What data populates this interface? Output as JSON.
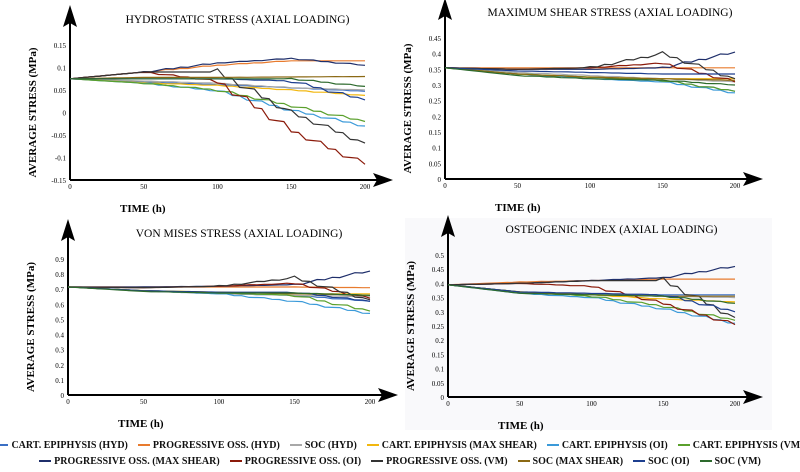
{
  "legend": [
    {
      "name": "CART. EPIPHYSIS (HYD)",
      "color": "#3a6fc4"
    },
    {
      "name": "PROGRESSIVE OSS. (HYD)",
      "color": "#e87b2e"
    },
    {
      "name": "SOC (HYD)",
      "color": "#a8a8a8"
    },
    {
      "name": "CART. EPIPHYSIS (MAX SHEAR)",
      "color": "#f2b70f"
    },
    {
      "name": "CART. EPIPHYSIS (OI)",
      "color": "#3b9ad9"
    },
    {
      "name": "CART. EPIPHYSIS (VM)",
      "color": "#5aa02c"
    },
    {
      "name": "PROGRESSIVE OSS. (MAX SHEAR)",
      "color": "#1f2f6b"
    },
    {
      "name": "PROGRESSIVE OSS. (OI)",
      "color": "#8b1a0a"
    },
    {
      "name": "PROGRESSIVE OSS. (VM)",
      "color": "#333333"
    },
    {
      "name": "SOC (MAX SHEAR)",
      "color": "#8b6914"
    },
    {
      "name": "SOC (OI)",
      "color": "#1d3f8f"
    },
    {
      "name": "SOC (VM)",
      "color": "#2d6a2d"
    }
  ],
  "chart_data": [
    {
      "type": "line",
      "title": "HYDROSTATIC STRESS (AXIAL LOADING)",
      "xlabel": "TIME (h)",
      "ylabel": "AVERAGE STRESS (MPa)",
      "xlim": [
        0,
        200
      ],
      "ylim": [
        -0.15,
        0.17
      ],
      "xticks": [
        "0",
        "50",
        "100",
        "150",
        "200"
      ],
      "yticks": [
        "-0.15",
        "-0.1",
        "-0.05",
        "0",
        "0.05",
        "0.1",
        "0.15"
      ],
      "x": [
        0,
        50,
        100,
        150,
        200
      ],
      "series": [
        {
          "name": "CART. EPIPHYSIS (HYD)",
          "values": [
            0.075,
            0.068,
            0.062,
            0.055,
            0.047
          ]
        },
        {
          "name": "PROGRESSIVE OSS. (HYD)",
          "values": [
            0.075,
            0.09,
            0.105,
            0.115,
            0.115
          ]
        },
        {
          "name": "SOC (HYD)",
          "values": [
            0.075,
            0.07,
            0.065,
            0.055,
            0.05
          ]
        },
        {
          "name": "CART. EPIPHYSIS (MAX SHEAR)",
          "values": [
            0.075,
            0.066,
            0.06,
            0.05,
            0.038
          ]
        },
        {
          "name": "CART. EPIPHYSIS (OI)",
          "values": [
            0.075,
            0.065,
            0.048,
            0.005,
            -0.03
          ]
        },
        {
          "name": "CART. EPIPHYSIS (VM)",
          "values": [
            0.075,
            0.065,
            0.05,
            0.015,
            -0.02
          ]
        },
        {
          "name": "PROGRESSIVE OSS. (MAX SHEAR)",
          "values": [
            0.075,
            0.09,
            0.11,
            0.12,
            0.105
          ]
        },
        {
          "name": "PROGRESSIVE OSS. (OI)",
          "values": [
            0.075,
            0.09,
            0.07,
            -0.04,
            -0.115
          ]
        },
        {
          "name": "PROGRESSIVE OSS. (VM)",
          "values": [
            0.075,
            0.09,
            0.09,
            0.0,
            -0.068
          ]
        },
        {
          "name": "SOC (MAX SHEAR)",
          "values": [
            0.075,
            0.078,
            0.078,
            0.079,
            0.08
          ]
        },
        {
          "name": "SOC (OI)",
          "values": [
            0.075,
            0.075,
            0.075,
            0.07,
            0.028
          ]
        },
        {
          "name": "SOC (VM)",
          "values": [
            0.075,
            0.075,
            0.075,
            0.075,
            0.058
          ]
        }
      ]
    },
    {
      "type": "line",
      "title": "MAXIMUM SHEAR STRESS (AXIAL LOADING)",
      "xlabel": "TIME (h)",
      "ylabel": "AVERAGE STRESS (MPa)",
      "xlim": [
        0,
        200
      ],
      "ylim": [
        0,
        0.47
      ],
      "xticks": [
        "0",
        "50",
        "100",
        "150",
        "200"
      ],
      "yticks": [
        "0",
        "0.05",
        "0.1",
        "0.15",
        "0.2",
        "0.25",
        "0.3",
        "0.35",
        "0.4",
        "0.45"
      ],
      "x": [
        0,
        50,
        100,
        150,
        200
      ],
      "series": [
        {
          "name": "CART. EPIPHYSIS (HYD)",
          "values": [
            0.355,
            0.335,
            0.325,
            0.315,
            0.28
          ]
        },
        {
          "name": "PROGRESSIVE OSS. (HYD)",
          "values": [
            0.355,
            0.355,
            0.355,
            0.355,
            0.355
          ]
        },
        {
          "name": "SOC (HYD)",
          "values": [
            0.355,
            0.34,
            0.33,
            0.32,
            0.31
          ]
        },
        {
          "name": "CART. EPIPHYSIS (MAX SHEAR)",
          "values": [
            0.355,
            0.335,
            0.325,
            0.32,
            0.32
          ]
        },
        {
          "name": "CART. EPIPHYSIS (OI)",
          "values": [
            0.355,
            0.335,
            0.32,
            0.31,
            0.275
          ]
        },
        {
          "name": "CART. EPIPHYSIS (VM)",
          "values": [
            0.355,
            0.335,
            0.325,
            0.315,
            0.28
          ]
        },
        {
          "name": "PROGRESSIVE OSS. (MAX SHEAR)",
          "values": [
            0.355,
            0.35,
            0.35,
            0.355,
            0.405
          ]
        },
        {
          "name": "PROGRESSIVE OSS. (OI)",
          "values": [
            0.355,
            0.35,
            0.355,
            0.37,
            0.31
          ]
        },
        {
          "name": "PROGRESSIVE OSS. (VM)",
          "values": [
            0.355,
            0.35,
            0.355,
            0.4,
            0.32
          ]
        },
        {
          "name": "SOC (MAX SHEAR)",
          "values": [
            0.355,
            0.335,
            0.325,
            0.32,
            0.315
          ]
        },
        {
          "name": "SOC (OI)",
          "values": [
            0.355,
            0.345,
            0.34,
            0.335,
            0.335
          ]
        },
        {
          "name": "SOC (VM)",
          "values": [
            0.355,
            0.33,
            0.32,
            0.315,
            0.3
          ]
        }
      ]
    },
    {
      "type": "line",
      "title": "VON MISES STRESS (AXIAL LOADING)",
      "xlabel": "TIME (h)",
      "ylabel": "AVERAGE STRESS (MPa)",
      "xlim": [
        0,
        200
      ],
      "ylim": [
        0,
        0.95
      ],
      "xticks": [
        "0",
        "50",
        "100",
        "150",
        "200"
      ],
      "yticks": [
        "0",
        "0.1",
        "0.2",
        "0.3",
        "0.4",
        "0.5",
        "0.6",
        "0.7",
        "0.8",
        "0.9"
      ],
      "x": [
        0,
        50,
        100,
        150,
        200
      ],
      "series": [
        {
          "name": "CART. EPIPHYSIS (HYD)",
          "values": [
            0.715,
            0.69,
            0.67,
            0.66,
            0.62
          ]
        },
        {
          "name": "PROGRESSIVE OSS. (HYD)",
          "values": [
            0.715,
            0.715,
            0.715,
            0.715,
            0.71
          ]
        },
        {
          "name": "SOC (HYD)",
          "values": [
            0.715,
            0.69,
            0.67,
            0.66,
            0.65
          ]
        },
        {
          "name": "CART. EPIPHYSIS (MAX SHEAR)",
          "values": [
            0.715,
            0.69,
            0.68,
            0.67,
            0.67
          ]
        },
        {
          "name": "CART. EPIPHYSIS (OI)",
          "values": [
            0.715,
            0.69,
            0.67,
            0.62,
            0.54
          ]
        },
        {
          "name": "CART. EPIPHYSIS (VM)",
          "values": [
            0.715,
            0.69,
            0.675,
            0.66,
            0.555
          ]
        },
        {
          "name": "PROGRESSIVE OSS. (MAX SHEAR)",
          "values": [
            0.715,
            0.715,
            0.72,
            0.73,
            0.82
          ]
        },
        {
          "name": "PROGRESSIVE OSS. (OI)",
          "values": [
            0.715,
            0.71,
            0.72,
            0.74,
            0.64
          ]
        },
        {
          "name": "PROGRESSIVE OSS. (VM)",
          "values": [
            0.715,
            0.71,
            0.72,
            0.775,
            0.63
          ]
        },
        {
          "name": "SOC (MAX SHEAR)",
          "values": [
            0.715,
            0.69,
            0.68,
            0.67,
            0.66
          ]
        },
        {
          "name": "SOC (OI)",
          "values": [
            0.715,
            0.69,
            0.68,
            0.68,
            0.62
          ]
        },
        {
          "name": "SOC (VM)",
          "values": [
            0.715,
            0.685,
            0.675,
            0.675,
            0.66
          ]
        }
      ]
    },
    {
      "type": "line",
      "title": "OSTEOGENIC INDEX (AXIAL LOADING)",
      "xlabel": "TIME (h)",
      "ylabel": "AVERAGE STRESS (MPa)",
      "xlim": [
        0,
        200
      ],
      "ylim": [
        0,
        0.52
      ],
      "xticks": [
        "0",
        "50",
        "100",
        "150",
        "200"
      ],
      "yticks": [
        "0",
        "0.05",
        "0.1",
        "0.15",
        "0.2",
        "0.25",
        "0.3",
        "0.35",
        "0.4",
        "0.45",
        "0.5"
      ],
      "x": [
        0,
        50,
        100,
        150,
        200
      ],
      "series": [
        {
          "name": "CART. EPIPHYSIS (HYD)",
          "values": [
            0.395,
            0.37,
            0.36,
            0.36,
            0.36
          ]
        },
        {
          "name": "PROGRESSIVE OSS. (HYD)",
          "values": [
            0.395,
            0.405,
            0.41,
            0.415,
            0.415
          ]
        },
        {
          "name": "SOC (HYD)",
          "values": [
            0.395,
            0.37,
            0.36,
            0.355,
            0.35
          ]
        },
        {
          "name": "CART. EPIPHYSIS (MAX SHEAR)",
          "values": [
            0.395,
            0.37,
            0.36,
            0.345,
            0.335
          ]
        },
        {
          "name": "CART. EPIPHYSIS (OI)",
          "values": [
            0.395,
            0.365,
            0.35,
            0.31,
            0.26
          ]
        },
        {
          "name": "CART. EPIPHYSIS (VM)",
          "values": [
            0.395,
            0.37,
            0.355,
            0.32,
            0.27
          ]
        },
        {
          "name": "PROGRESSIVE OSS. (MAX SHEAR)",
          "values": [
            0.395,
            0.4,
            0.41,
            0.42,
            0.46
          ]
        },
        {
          "name": "PROGRESSIVE OSS. (OI)",
          "values": [
            0.395,
            0.4,
            0.39,
            0.33,
            0.255
          ]
        },
        {
          "name": "PROGRESSIVE OSS. (VM)",
          "values": [
            0.395,
            0.4,
            0.41,
            0.41,
            0.28
          ]
        },
        {
          "name": "SOC (MAX SHEAR)",
          "values": [
            0.395,
            0.37,
            0.36,
            0.355,
            0.355
          ]
        },
        {
          "name": "SOC (OI)",
          "values": [
            0.395,
            0.37,
            0.365,
            0.36,
            0.3
          ]
        },
        {
          "name": "SOC (VM)",
          "values": [
            0.395,
            0.365,
            0.36,
            0.355,
            0.33
          ]
        }
      ]
    }
  ]
}
